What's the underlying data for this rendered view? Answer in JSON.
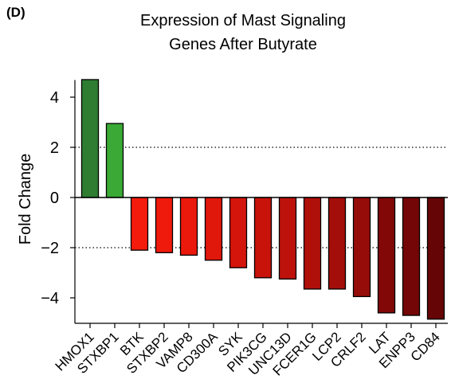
{
  "panel_label": "(D)",
  "chart_data": {
    "type": "bar",
    "title_lines": [
      "Expression of Mast Signaling",
      "Genes After Butyrate"
    ],
    "xlabel": "",
    "ylabel": "Fold Change",
    "ylim": [
      -5,
      5
    ],
    "yticks": [
      4,
      2,
      0,
      -2,
      -4
    ],
    "ytick_labels": [
      "4",
      "2",
      "0",
      "−2",
      "−4"
    ],
    "reference_lines": [
      2,
      -2
    ],
    "categories": [
      "HMOX1",
      "STXBP1",
      "BTK",
      "STXBP2",
      "VAMP8",
      "CD300A",
      "SYK",
      "PIK3CG",
      "UNC13D",
      "FCER1G",
      "LCP2",
      "CRLF2",
      "LAT",
      "ENPP3",
      "CD84"
    ],
    "values": [
      4.7,
      2.95,
      -2.1,
      -2.2,
      -2.3,
      -2.5,
      -2.8,
      -3.2,
      -3.25,
      -3.65,
      -3.65,
      -3.95,
      -4.6,
      -4.7,
      -4.85
    ],
    "bar_colors": [
      "#2e7d32",
      "#3aa935",
      "#f51b0c",
      "#f01a0c",
      "#ea190c",
      "#e0170b",
      "#d4150b",
      "#c8130b",
      "#bd120b",
      "#b0100a",
      "#a30e0a",
      "#960c09",
      "#820808",
      "#740607",
      "#650506"
    ]
  }
}
